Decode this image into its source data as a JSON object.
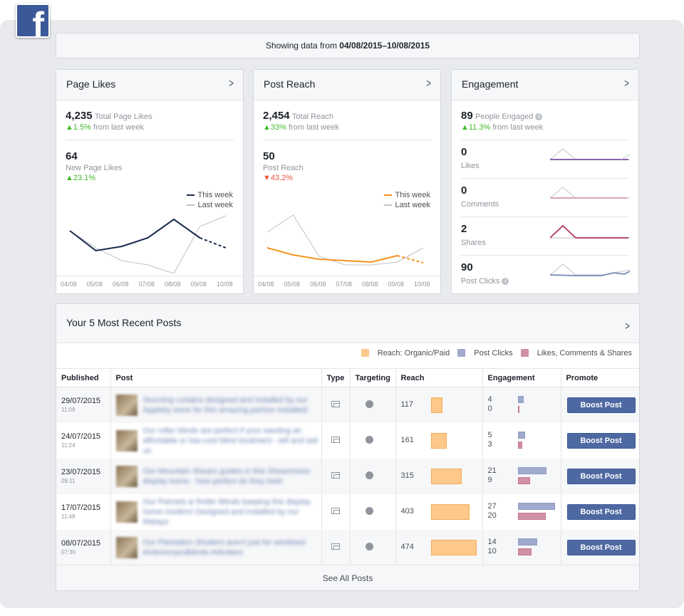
{
  "logo": {
    "text": "f",
    "color": "#3b5998"
  },
  "range": {
    "prefix": "Showing data from",
    "dates": "04/08/2015–10/08/2015"
  },
  "page_likes": {
    "title": "Page Likes",
    "total": "4,235",
    "total_label": "Total Page Likes",
    "total_change": "1.5%",
    "total_change_label": "from last week",
    "new": "64",
    "new_label": "New Page Likes",
    "new_change": "23.1%",
    "legend_this": "This week",
    "legend_last": "Last week"
  },
  "post_reach": {
    "title": "Post Reach",
    "total": "2,454",
    "total_label": "Total Reach",
    "total_change": "33%",
    "total_change_label": "from last week",
    "value": "50",
    "value_label": "Post Reach",
    "value_change": "43.2%",
    "legend_this": "This week",
    "legend_last": "Last week"
  },
  "engagement": {
    "title": "Engagement",
    "total": "89",
    "total_label": "People Engaged",
    "total_change": "11.3%",
    "total_change_label": "from last week",
    "rows": [
      {
        "value": "0",
        "label": "Likes"
      },
      {
        "value": "0",
        "label": "Comments"
      },
      {
        "value": "2",
        "label": "Shares"
      },
      {
        "value": "90",
        "label": "Post Clicks"
      }
    ]
  },
  "x_ticks": [
    "04/08",
    "05/08",
    "06/08",
    "07/08",
    "08/08",
    "09/08",
    "10/08"
  ],
  "chart_data": [
    {
      "type": "line",
      "x": [
        "04/08",
        "05/08",
        "06/08",
        "07/08",
        "08/08",
        "09/08",
        "10/08"
      ],
      "series": [
        {
          "name": "This week",
          "values": [
            64,
            36,
            42,
            54,
            80,
            54,
            40
          ],
          "color": "#1a2a4f"
        },
        {
          "name": "Last week",
          "values": [
            64,
            40,
            22,
            16,
            4,
            70,
            85
          ],
          "color": "#bec2c9"
        }
      ]
    },
    {
      "type": "line",
      "x": [
        "04/08",
        "05/08",
        "06/08",
        "07/08",
        "08/08",
        "09/08",
        "10/08"
      ],
      "series": [
        {
          "name": "This week",
          "values": [
            40,
            30,
            24,
            22,
            20,
            29,
            19
          ],
          "color": "#f7931e"
        },
        {
          "name": "Last week",
          "values": [
            62,
            86,
            28,
            16,
            16,
            20,
            40
          ],
          "color": "#bec2c9"
        }
      ]
    }
  ],
  "posts": {
    "title": "Your 5 Most Recent Posts",
    "legend": [
      "Reach: Organic/Paid",
      "Post Clicks",
      "Likes, Comments & Shares"
    ],
    "legend_colors": [
      "#fcc98a",
      "#9faacc",
      "#d191a4"
    ],
    "headers": [
      "Published",
      "Post",
      "Type",
      "Targeting",
      "Reach",
      "Engagement",
      "Promote"
    ],
    "boost_label": "Boost Post",
    "see_all": "See All Posts",
    "rows": [
      {
        "date": "29/07/2015",
        "time": "11:09",
        "text": "Stunning curtains designed and installed by our Appleby store for this amazing parlour installed!",
        "reach": 117,
        "clicks": 4,
        "likes": 0
      },
      {
        "date": "24/07/2015",
        "time": "11:24",
        "text": "Our roller blinds are perfect if your wanting an affordable or low-cost blind treatment - tell and ask us",
        "reach": 161,
        "clicks": 5,
        "likes": 3
      },
      {
        "date": "23/07/2015",
        "time": "09:11",
        "text": "Our Mountain Shears guides in this Shearmores display home - how perfect do they look!",
        "reach": 315,
        "clicks": 21,
        "likes": 9
      },
      {
        "date": "17/07/2015",
        "time": "11:48",
        "text": "Our Pelmets & Roller Blinds keeping this display home modern! Designed and installed by our Malaya",
        "reach": 403,
        "clicks": 27,
        "likes": 20
      },
      {
        "date": "08/07/2015",
        "time": "07:30",
        "text": "Our Plantation Shutters aren't just for windows! #interiorsandblinds #shutters",
        "reach": 474,
        "clicks": 14,
        "likes": 10
      }
    ]
  }
}
